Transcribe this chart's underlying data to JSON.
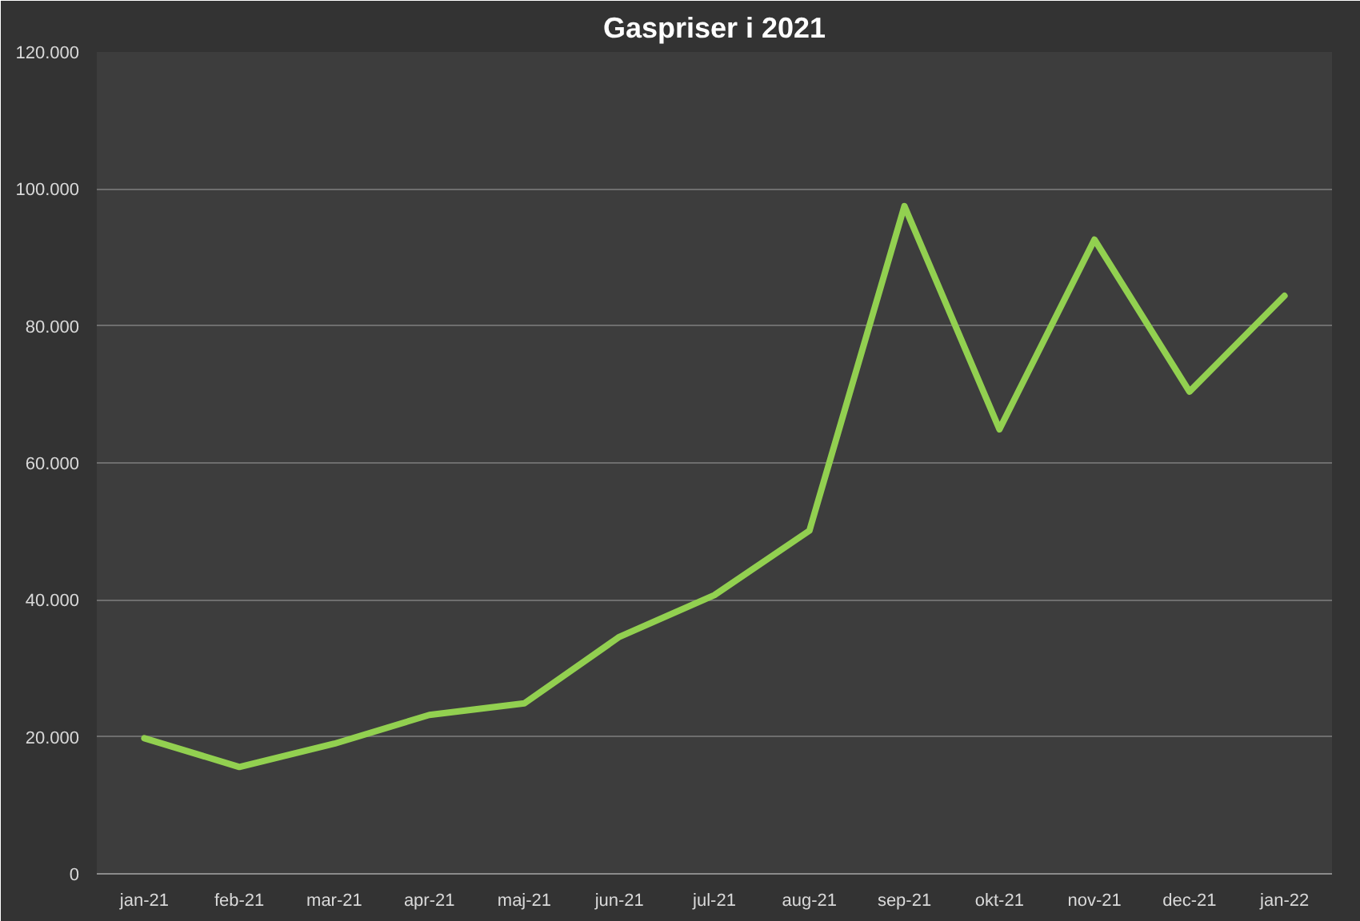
{
  "chart_data": {
    "type": "line",
    "title": "Gaspriser i 2021",
    "categories": [
      "jan-21",
      "feb-21",
      "mar-21",
      "apr-21",
      "maj-21",
      "jun-21",
      "jul-21",
      "aug-21",
      "sep-21",
      "okt-21",
      "nov-21",
      "dec-21",
      "jan-22"
    ],
    "series": [
      {
        "color": "#92d050",
        "values": [
          19800,
          15600,
          19000,
          23200,
          24900,
          34600,
          40700,
          50100,
          97500,
          64900,
          92600,
          70400,
          84400
        ]
      }
    ],
    "ylim": [
      0,
      120000
    ],
    "yticks": [
      "0",
      {
        "value": 20000,
        "label": "20.000"
      },
      {
        "value": 40000,
        "label": "40.000"
      },
      {
        "value": 60000,
        "label": "60.000"
      },
      {
        "value": 80000,
        "label": "80.000"
      },
      {
        "value": 100000,
        "label": "100.000"
      },
      {
        "value": 120000,
        "label": "120.000"
      }
    ],
    "grid": "y",
    "marker": "none",
    "line_style": "solid"
  }
}
